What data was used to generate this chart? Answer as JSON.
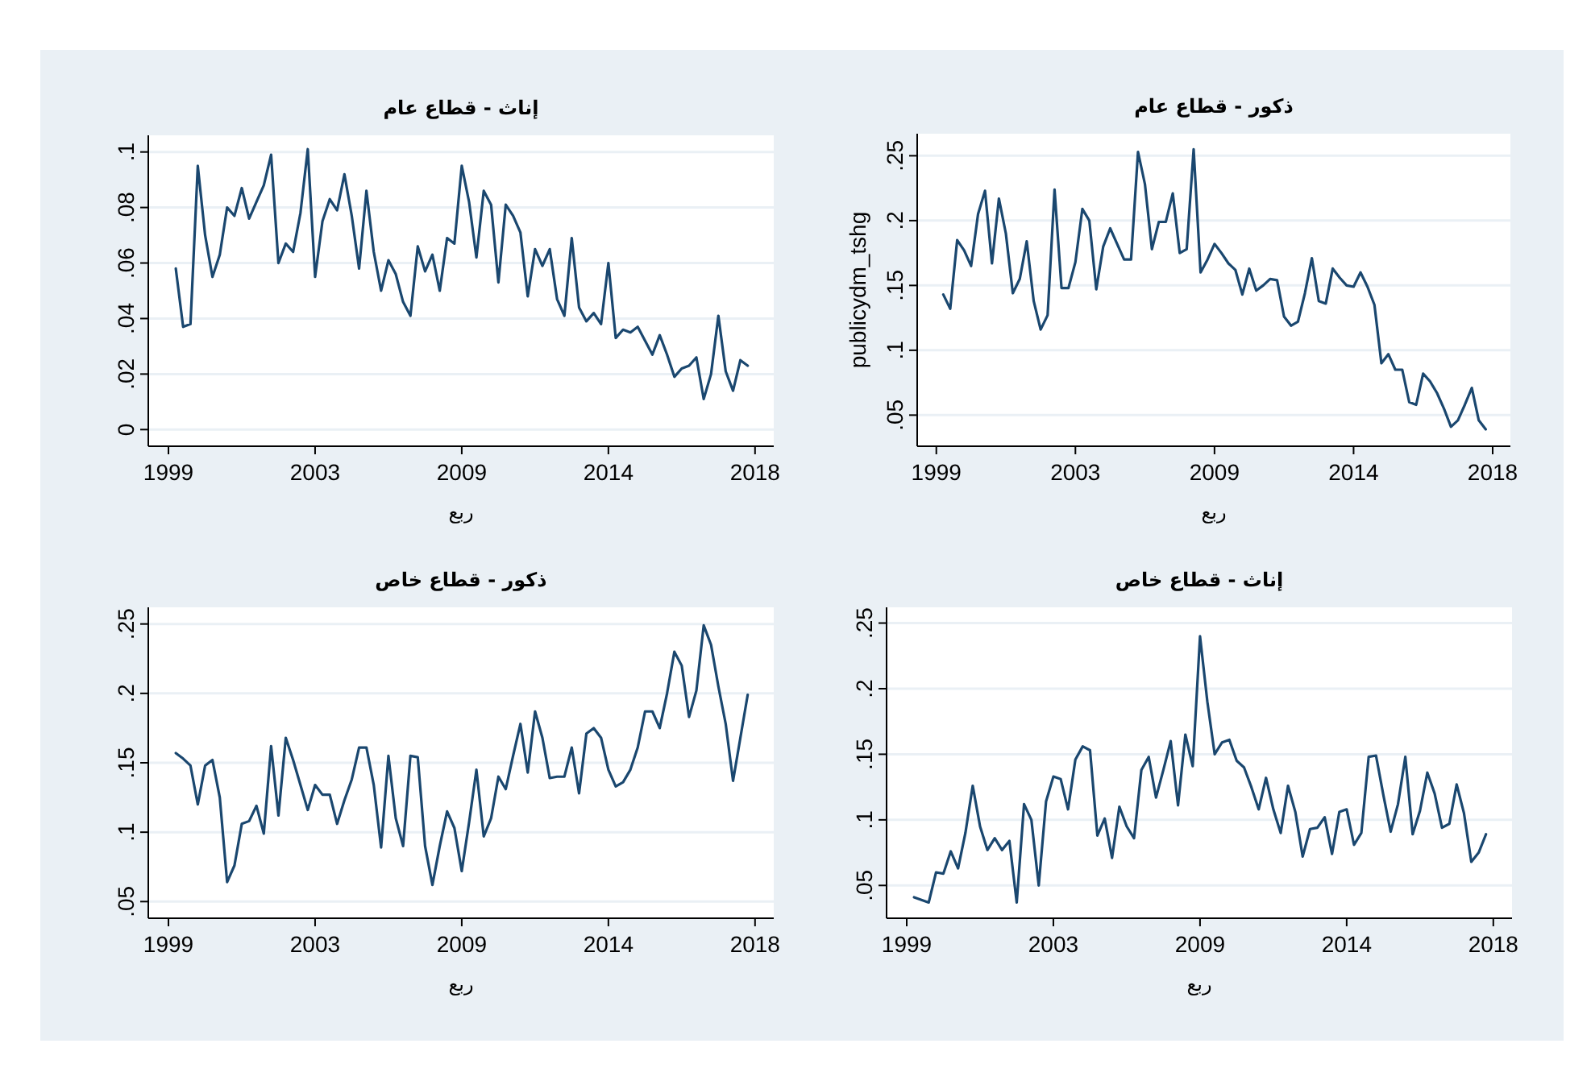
{
  "chart_data": [
    {
      "type": "line",
      "title": "إناث - قطاع عام",
      "xlabel": "ربع",
      "grid": "y",
      "categories": [
        "1999",
        null,
        null,
        null,
        null,
        null,
        null,
        null,
        null,
        null,
        null,
        null,
        null,
        null,
        null,
        null,
        null,
        null,
        null,
        null,
        "2003",
        null,
        null,
        null,
        null,
        null,
        null,
        null,
        null,
        null,
        null,
        null,
        null,
        null,
        null,
        null,
        null,
        null,
        null,
        null,
        "2009",
        null,
        null,
        null,
        null,
        null,
        null,
        null,
        null,
        null,
        null,
        null,
        null,
        null,
        null,
        null,
        null,
        null,
        null,
        null,
        "2014",
        null,
        null,
        null,
        null,
        null,
        null,
        null,
        null,
        null,
        null,
        null,
        null,
        null,
        null,
        null,
        null,
        null,
        null,
        null,
        "2018"
      ],
      "ylim": [
        -0.006,
        0.106
      ],
      "yticks": [
        0,
        {
          "value": 0.02,
          "label": ".02"
        },
        {
          "value": 0.04,
          "label": ".04"
        },
        {
          "value": 0.06,
          "label": ".06"
        },
        {
          "value": 0.08,
          "label": ".08"
        },
        {
          "value": 0.1,
          "label": ".1"
        }
      ],
      "series": [
        {
          "color": "#1a476f",
          "values": [
            null,
            0.058,
            0.037,
            0.038,
            0.095,
            0.07,
            0.055,
            0.063,
            0.08,
            0.077,
            0.087,
            0.076,
            0.082,
            0.088,
            0.099,
            0.06,
            0.067,
            0.064,
            0.078,
            0.101,
            0.055,
            0.075,
            0.083,
            0.079,
            0.092,
            0.077,
            0.058,
            0.086,
            0.064,
            0.05,
            0.061,
            0.056,
            0.046,
            0.041,
            0.066,
            0.057,
            0.063,
            0.05,
            0.069,
            0.067,
            0.095,
            0.082,
            0.062,
            0.086,
            0.081,
            0.053,
            0.081,
            0.077,
            0.071,
            0.048,
            0.065,
            0.059,
            0.065,
            0.047,
            0.041,
            0.069,
            0.044,
            0.039,
            0.042,
            0.038,
            0.06,
            0.033,
            0.036,
            0.035,
            0.037,
            0.032,
            0.027,
            0.034,
            0.027,
            0.019,
            0.022,
            0.023,
            0.026,
            0.011,
            0.02,
            0.041,
            0.021,
            0.014,
            0.025,
            0.023,
            null
          ]
        }
      ]
    },
    {
      "type": "line",
      "title": "ذكور - قطاع عام",
      "xlabel": "ربع",
      "ylabel": "publicydm_tshg",
      "grid": "y",
      "categories": [
        "1999",
        null,
        null,
        null,
        null,
        null,
        null,
        null,
        null,
        null,
        null,
        null,
        null,
        null,
        null,
        null,
        null,
        null,
        null,
        null,
        "2003",
        null,
        null,
        null,
        null,
        null,
        null,
        null,
        null,
        null,
        null,
        null,
        null,
        null,
        null,
        null,
        null,
        null,
        null,
        null,
        "2009",
        null,
        null,
        null,
        null,
        null,
        null,
        null,
        null,
        null,
        null,
        null,
        null,
        null,
        null,
        null,
        null,
        null,
        null,
        null,
        "2014",
        null,
        null,
        null,
        null,
        null,
        null,
        null,
        null,
        null,
        null,
        null,
        null,
        null,
        null,
        null,
        null,
        null,
        null,
        null,
        "2018"
      ],
      "ylim": [
        0.026,
        0.267
      ],
      "yticks": [
        {
          "value": 0.05,
          "label": ".05"
        },
        {
          "value": 0.1,
          "label": ".1"
        },
        {
          "value": 0.15,
          "label": ".15"
        },
        {
          "value": 0.2,
          "label": ".2"
        },
        {
          "value": 0.25,
          "label": ".25"
        }
      ],
      "series": [
        {
          "color": "#1a476f",
          "values": [
            null,
            0.143,
            0.132,
            0.185,
            0.177,
            0.165,
            0.205,
            0.223,
            0.167,
            0.217,
            0.19,
            0.144,
            0.155,
            0.184,
            0.138,
            0.116,
            0.127,
            0.224,
            0.148,
            0.148,
            0.168,
            0.209,
            0.2,
            0.147,
            0.18,
            0.194,
            0.182,
            0.17,
            0.17,
            0.253,
            0.228,
            0.178,
            0.199,
            0.199,
            0.221,
            0.175,
            0.178,
            0.255,
            0.16,
            0.17,
            0.182,
            0.175,
            0.167,
            0.162,
            0.143,
            0.163,
            0.146,
            0.15,
            0.155,
            0.154,
            0.126,
            0.119,
            0.122,
            0.144,
            0.171,
            0.138,
            0.136,
            0.163,
            0.156,
            0.15,
            0.149,
            0.16,
            0.149,
            0.135,
            0.09,
            0.097,
            0.085,
            0.085,
            0.06,
            0.058,
            0.082,
            0.076,
            0.067,
            0.055,
            0.041,
            0.046,
            0.058,
            0.071,
            0.046,
            0.039,
            null
          ]
        }
      ]
    },
    {
      "type": "line",
      "title": "ذكور - قطاع خاص",
      "xlabel": "ربع",
      "grid": "y",
      "categories": [
        "1999",
        null,
        null,
        null,
        null,
        null,
        null,
        null,
        null,
        null,
        null,
        null,
        null,
        null,
        null,
        null,
        null,
        null,
        null,
        null,
        "2003",
        null,
        null,
        null,
        null,
        null,
        null,
        null,
        null,
        null,
        null,
        null,
        null,
        null,
        null,
        null,
        null,
        null,
        null,
        null,
        "2009",
        null,
        null,
        null,
        null,
        null,
        null,
        null,
        null,
        null,
        null,
        null,
        null,
        null,
        null,
        null,
        null,
        null,
        null,
        null,
        "2014",
        null,
        null,
        null,
        null,
        null,
        null,
        null,
        null,
        null,
        null,
        null,
        null,
        null,
        null,
        null,
        null,
        null,
        null,
        null,
        "2018"
      ],
      "ylim": [
        0.038,
        0.262
      ],
      "yticks": [
        {
          "value": 0.05,
          "label": ".05"
        },
        {
          "value": 0.1,
          "label": ".1"
        },
        {
          "value": 0.15,
          "label": ".15"
        },
        {
          "value": 0.2,
          "label": ".2"
        },
        {
          "value": 0.25,
          "label": ".25"
        }
      ],
      "series": [
        {
          "color": "#1a476f",
          "values": [
            null,
            0.157,
            0.153,
            0.148,
            0.12,
            0.148,
            0.152,
            0.125,
            0.064,
            0.076,
            0.106,
            0.108,
            0.119,
            0.099,
            0.162,
            0.112,
            0.168,
            0.152,
            0.134,
            0.116,
            0.134,
            0.127,
            0.127,
            0.106,
            0.123,
            0.138,
            0.161,
            0.161,
            0.134,
            0.089,
            0.155,
            0.11,
            0.09,
            0.155,
            0.154,
            0.09,
            0.062,
            0.09,
            0.115,
            0.103,
            0.072,
            0.107,
            0.145,
            0.097,
            0.11,
            0.14,
            0.131,
            0.155,
            0.178,
            0.143,
            0.187,
            0.168,
            0.139,
            0.14,
            0.14,
            0.161,
            0.128,
            0.171,
            0.175,
            0.168,
            0.145,
            0.133,
            0.136,
            0.145,
            0.161,
            0.187,
            0.187,
            0.175,
            0.2,
            0.23,
            0.22,
            0.183,
            0.202,
            0.249,
            0.235,
            0.205,
            0.178,
            0.137,
            0.168,
            0.199,
            null
          ]
        }
      ]
    },
    {
      "type": "line",
      "title": "إناث - قطاع خاص",
      "xlabel": "ربع",
      "grid": "y",
      "categories": [
        "1999",
        null,
        null,
        null,
        null,
        null,
        null,
        null,
        null,
        null,
        null,
        null,
        null,
        null,
        null,
        null,
        null,
        null,
        null,
        null,
        "2003",
        null,
        null,
        null,
        null,
        null,
        null,
        null,
        null,
        null,
        null,
        null,
        null,
        null,
        null,
        null,
        null,
        null,
        null,
        null,
        "2009",
        null,
        null,
        null,
        null,
        null,
        null,
        null,
        null,
        null,
        null,
        null,
        null,
        null,
        null,
        null,
        null,
        null,
        null,
        null,
        "2014",
        null,
        null,
        null,
        null,
        null,
        null,
        null,
        null,
        null,
        null,
        null,
        null,
        null,
        null,
        null,
        null,
        null,
        null,
        null,
        "2018"
      ],
      "ylim": [
        0.025,
        0.262
      ],
      "yticks": [
        {
          "value": 0.05,
          "label": ".05"
        },
        {
          "value": 0.1,
          "label": ".1"
        },
        {
          "value": 0.15,
          "label": ".15"
        },
        {
          "value": 0.2,
          "label": ".2"
        },
        {
          "value": 0.25,
          "label": ".25"
        }
      ],
      "series": [
        {
          "color": "#1a476f",
          "values": [
            null,
            0.041,
            0.039,
            0.037,
            0.06,
            0.059,
            0.076,
            0.063,
            0.09,
            0.126,
            0.095,
            0.077,
            0.086,
            0.077,
            0.084,
            0.037,
            0.112,
            0.1,
            0.05,
            0.114,
            0.133,
            0.131,
            0.108,
            0.146,
            0.156,
            0.153,
            0.088,
            0.101,
            0.071,
            0.11,
            0.095,
            0.086,
            0.138,
            0.148,
            0.117,
            0.138,
            0.16,
            0.111,
            0.165,
            0.141,
            0.24,
            0.19,
            0.15,
            0.159,
            0.161,
            0.145,
            0.14,
            0.125,
            0.108,
            0.132,
            0.108,
            0.09,
            0.126,
            0.106,
            0.072,
            0.093,
            0.094,
            0.102,
            0.074,
            0.106,
            0.108,
            0.081,
            0.09,
            0.148,
            0.149,
            0.119,
            0.091,
            0.112,
            0.148,
            0.089,
            0.107,
            0.136,
            0.12,
            0.094,
            0.097,
            0.127,
            0.105,
            0.068,
            0.075,
            0.089,
            null
          ]
        }
      ]
    }
  ]
}
